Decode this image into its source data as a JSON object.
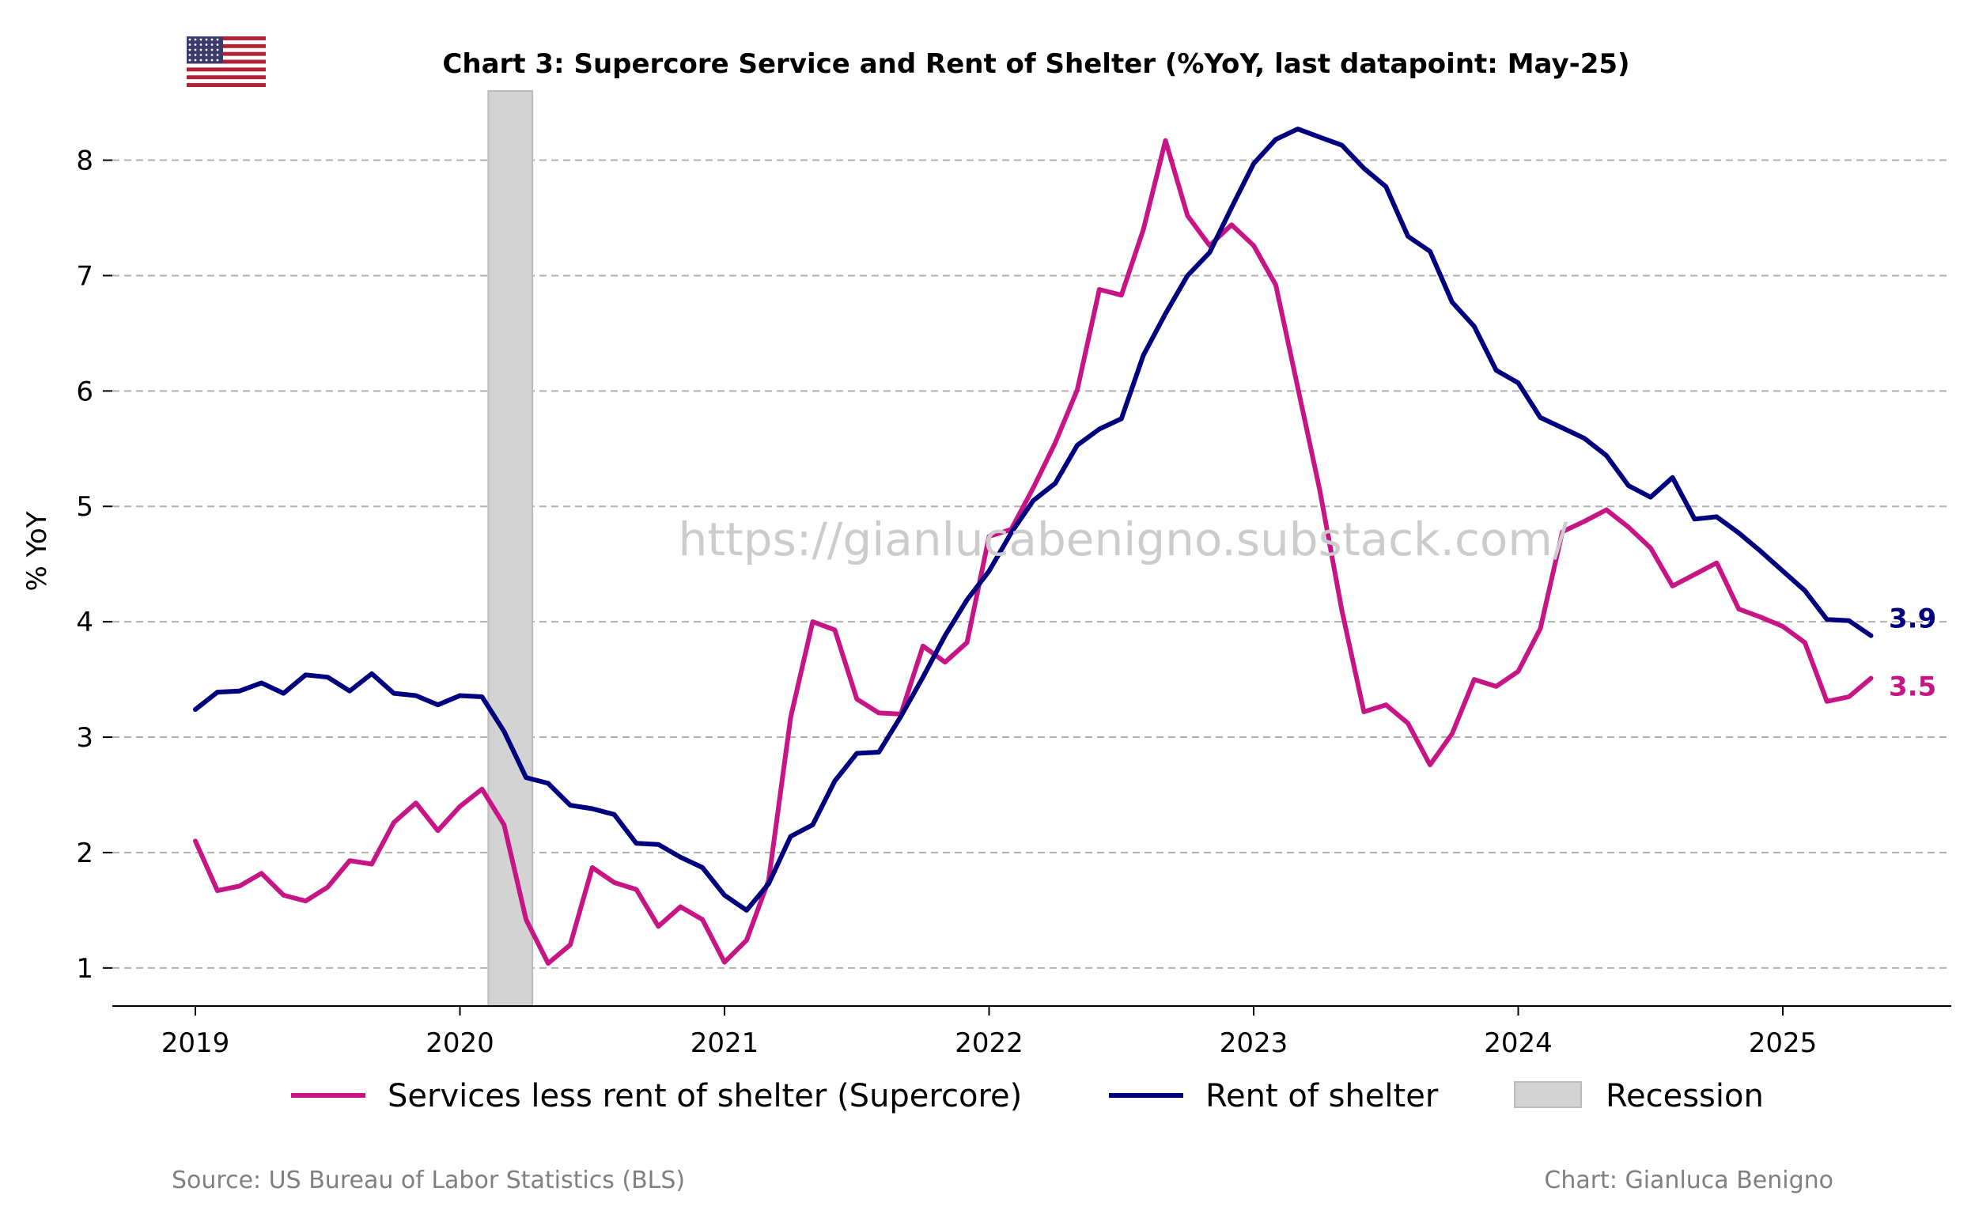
{
  "chart_data": {
    "type": "line",
    "title": "Chart 3: Supercore Service and Rent of Shelter (%YoY, last datapoint: May-25)",
    "ylabel": "% YoY",
    "xlabel": "",
    "ylim": [
      0.67,
      8.6
    ],
    "yticks": [
      1,
      2,
      3,
      4,
      5,
      6,
      7,
      8
    ],
    "x_start": "2019-01",
    "x_ticks": [
      "2019",
      "2020",
      "2021",
      "2022",
      "2023",
      "2024",
      "2025"
    ],
    "grid": "horizontal dashed",
    "legend_placement": "bottom-center",
    "series": [
      {
        "name": "Services less rent of shelter (Supercore)",
        "color": "#c71585",
        "end_label": "3.5",
        "values": [
          2.1,
          1.67,
          1.71,
          1.82,
          1.63,
          1.58,
          1.7,
          1.93,
          1.9,
          2.26,
          2.43,
          2.19,
          2.4,
          2.55,
          2.24,
          1.42,
          1.04,
          1.2,
          1.87,
          1.74,
          1.68,
          1.36,
          1.53,
          1.42,
          1.05,
          1.24,
          1.76,
          3.17,
          4.0,
          3.93,
          3.33,
          3.21,
          3.2,
          3.79,
          3.65,
          3.82,
          4.74,
          4.8,
          5.16,
          5.55,
          6.01,
          6.88,
          6.83,
          7.4,
          8.17,
          7.52,
          7.26,
          7.44,
          7.26,
          6.92,
          6.03,
          5.14,
          4.1,
          3.22,
          3.28,
          3.12,
          2.76,
          3.03,
          3.5,
          3.44,
          3.57,
          3.94,
          4.78,
          4.87,
          4.97,
          4.82,
          4.64,
          4.31,
          4.41,
          4.51,
          4.11,
          4.04,
          3.96,
          3.82,
          3.31,
          3.35,
          3.51
        ]
      },
      {
        "name": "Rent of shelter",
        "color": "#00007f",
        "end_label": "3.9",
        "values": [
          3.24,
          3.39,
          3.4,
          3.47,
          3.38,
          3.54,
          3.52,
          3.4,
          3.55,
          3.38,
          3.36,
          3.28,
          3.36,
          3.35,
          3.05,
          2.65,
          2.6,
          2.41,
          2.38,
          2.33,
          2.08,
          2.07,
          1.96,
          1.87,
          1.63,
          1.5,
          1.73,
          2.14,
          2.24,
          2.62,
          2.86,
          2.87,
          3.18,
          3.52,
          3.88,
          4.19,
          4.44,
          4.77,
          5.05,
          5.2,
          5.53,
          5.67,
          5.76,
          6.31,
          6.67,
          7.0,
          7.2,
          7.59,
          7.97,
          8.18,
          8.27,
          8.2,
          8.13,
          7.93,
          7.77,
          7.34,
          7.21,
          6.77,
          6.56,
          6.18,
          6.07,
          5.77,
          5.68,
          5.59,
          5.44,
          5.18,
          5.08,
          5.25,
          4.89,
          4.91,
          4.77,
          4.61,
          4.44,
          4.27,
          4.02,
          4.01,
          3.88
        ]
      }
    ],
    "recession": {
      "label": "Recession",
      "start": "2020-02",
      "end": "2020-04",
      "color": "#d3d3d3"
    }
  },
  "watermark": "https://gianlucabenigno.substack.com/",
  "footer": {
    "source": "Source: US Bureau of Labor Statistics (BLS)",
    "credit": "Chart: Gianluca Benigno"
  },
  "flag_icon": "us-flag-icon"
}
